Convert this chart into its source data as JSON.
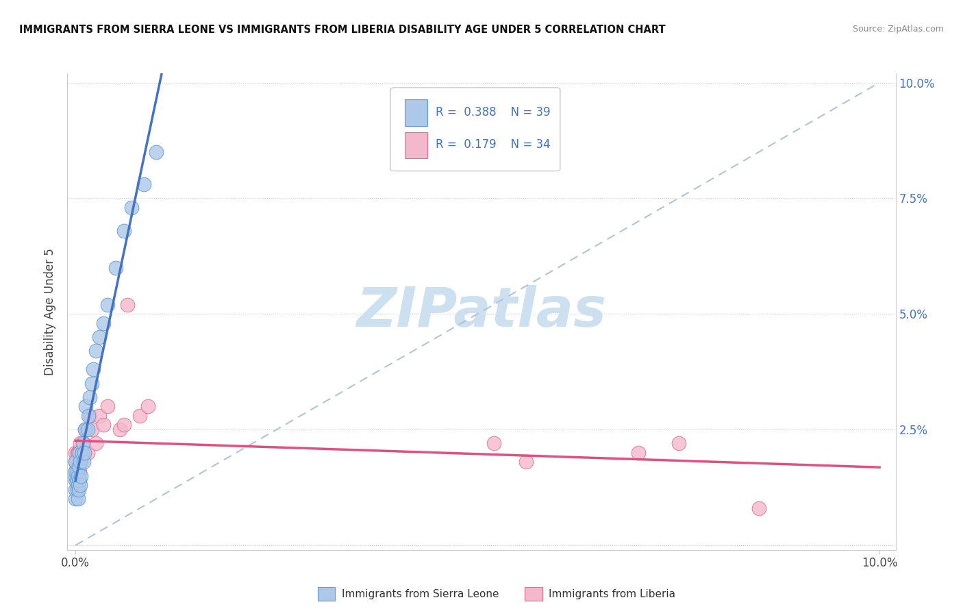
{
  "title": "IMMIGRANTS FROM SIERRA LEONE VS IMMIGRANTS FROM LIBERIA DISABILITY AGE UNDER 5 CORRELATION CHART",
  "source": "Source: ZipAtlas.com",
  "ylabel": "Disability Age Under 5",
  "legend1_r": "0.388",
  "legend1_n": "39",
  "legend2_r": "0.179",
  "legend2_n": "34",
  "legend1_label": "Immigrants from Sierra Leone",
  "legend2_label": "Immigrants from Liberia",
  "color_blue_fill": "#adc8e8",
  "color_blue_edge": "#5b9bd5",
  "color_pink_fill": "#f4b8cc",
  "color_pink_edge": "#e07090",
  "color_blue_line": "#4472c4",
  "color_pink_line": "#e05080",
  "color_diagonal": "#b0c4d8",
  "watermark_color": "#cce0f0",
  "xlim": [
    0.0,
    0.1
  ],
  "ylim": [
    0.0,
    0.1
  ],
  "sierra_leone_x": [
    0.0,
    0.0,
    0.0,
    0.0,
    0.0,
    0.0,
    0.0002,
    0.0002,
    0.0002,
    0.0003,
    0.0003,
    0.0003,
    0.0004,
    0.0004,
    0.0005,
    0.0005,
    0.0006,
    0.0006,
    0.0007,
    0.0008,
    0.0009,
    0.001,
    0.0011,
    0.0012,
    0.0013,
    0.0015,
    0.0016,
    0.0018,
    0.002,
    0.0022,
    0.0025,
    0.003,
    0.0035,
    0.004,
    0.005,
    0.006,
    0.007,
    0.0085,
    0.01
  ],
  "sierra_leone_y": [
    0.01,
    0.012,
    0.014,
    0.015,
    0.016,
    0.018,
    0.012,
    0.014,
    0.016,
    0.01,
    0.013,
    0.015,
    0.012,
    0.017,
    0.014,
    0.02,
    0.013,
    0.018,
    0.015,
    0.02,
    0.022,
    0.018,
    0.02,
    0.025,
    0.03,
    0.025,
    0.028,
    0.032,
    0.035,
    0.038,
    0.042,
    0.045,
    0.048,
    0.052,
    0.06,
    0.068,
    0.073,
    0.078,
    0.085
  ],
  "liberia_x": [
    0.0,
    0.0,
    0.0,
    0.0001,
    0.0001,
    0.0002,
    0.0002,
    0.0003,
    0.0003,
    0.0004,
    0.0005,
    0.0005,
    0.0006,
    0.0007,
    0.0008,
    0.001,
    0.0012,
    0.0015,
    0.0018,
    0.002,
    0.0025,
    0.003,
    0.0035,
    0.004,
    0.0055,
    0.006,
    0.0065,
    0.008,
    0.009,
    0.052,
    0.056,
    0.07,
    0.075,
    0.085
  ],
  "liberia_y": [
    0.016,
    0.018,
    0.02,
    0.014,
    0.018,
    0.015,
    0.02,
    0.015,
    0.02,
    0.017,
    0.016,
    0.02,
    0.022,
    0.018,
    0.02,
    0.022,
    0.025,
    0.02,
    0.028,
    0.025,
    0.022,
    0.028,
    0.026,
    0.03,
    0.025,
    0.026,
    0.052,
    0.028,
    0.03,
    0.022,
    0.018,
    0.02,
    0.022,
    0.008
  ]
}
